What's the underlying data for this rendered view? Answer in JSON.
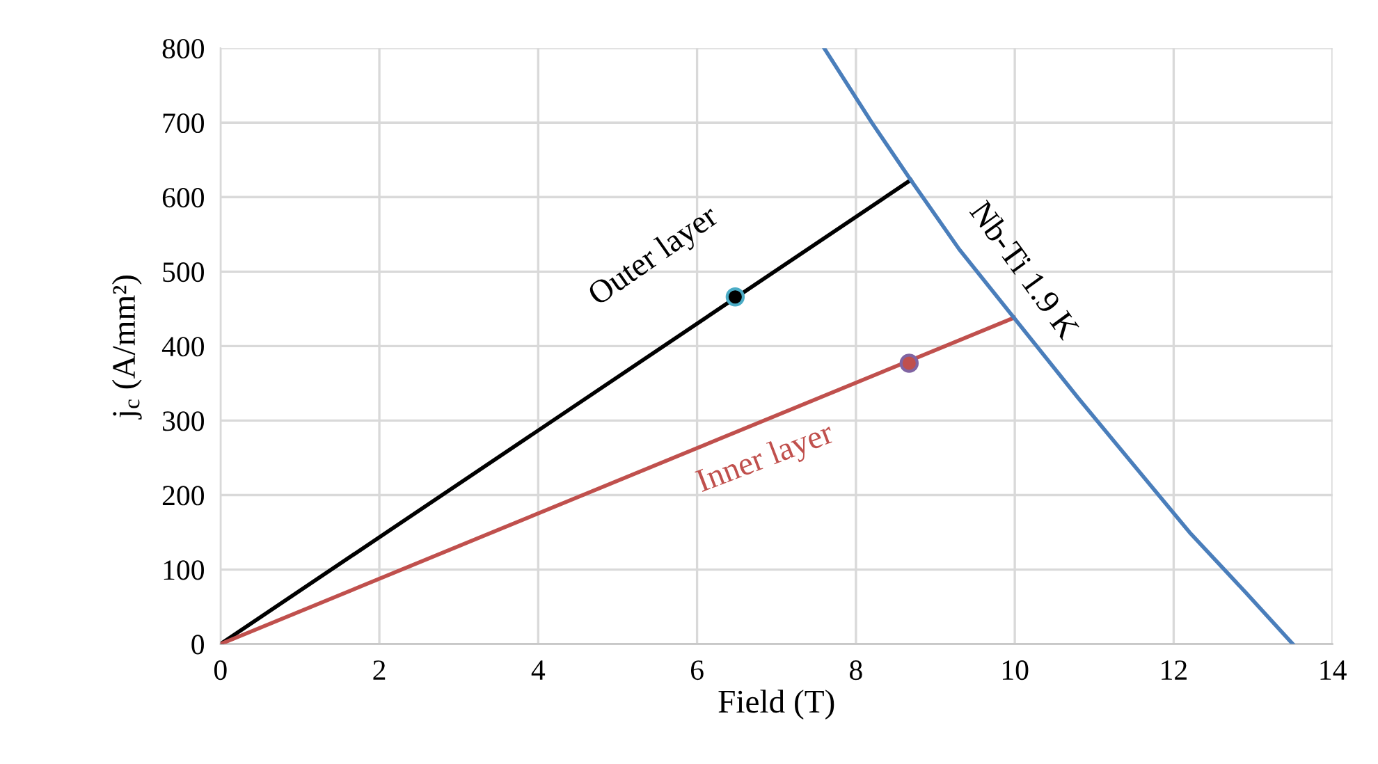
{
  "chart_data": {
    "type": "line",
    "xlabel": "Field (T)",
    "ylabel": "j$_{c}$ (A/mm²)",
    "xlim": [
      0,
      14
    ],
    "xticks": [
      0,
      2,
      4,
      6,
      8,
      10,
      12,
      14
    ],
    "ylim": [
      0,
      800
    ],
    "yticks": [
      0,
      100,
      200,
      300,
      400,
      500,
      600,
      700,
      800
    ],
    "grid": true,
    "series": [
      {
        "color": "#000000",
        "x": [
          0,
          8.69
        ],
        "values": [
          0,
          623
        ]
      },
      {
        "color": "#c0504d",
        "x": [
          0,
          9.99
        ],
        "values": [
          0,
          438
        ]
      },
      {
        "color": "#4a7ebb",
        "x": [
          7.6,
          8.2,
          8.69,
          9.3,
          9.99,
          10.8,
          11.5,
          12.2,
          12.9,
          13.5
        ],
        "values": [
          800,
          700,
          623,
          530,
          438,
          330,
          240,
          150,
          70,
          0
        ]
      },
      {
        "type": "scatter",
        "color": "#000000",
        "marker": "circle",
        "x": [
          6.48
        ],
        "values": [
          466
        ]
      },
      {
        "type": "scatter",
        "color": "#c0504d",
        "marker": "circle",
        "x": [
          8.67
        ],
        "values": [
          377
        ]
      }
    ],
    "annotations": [
      "Outer layer",
      "Inner layer",
      "Nb-Ti 1.9 K"
    ]
  }
}
